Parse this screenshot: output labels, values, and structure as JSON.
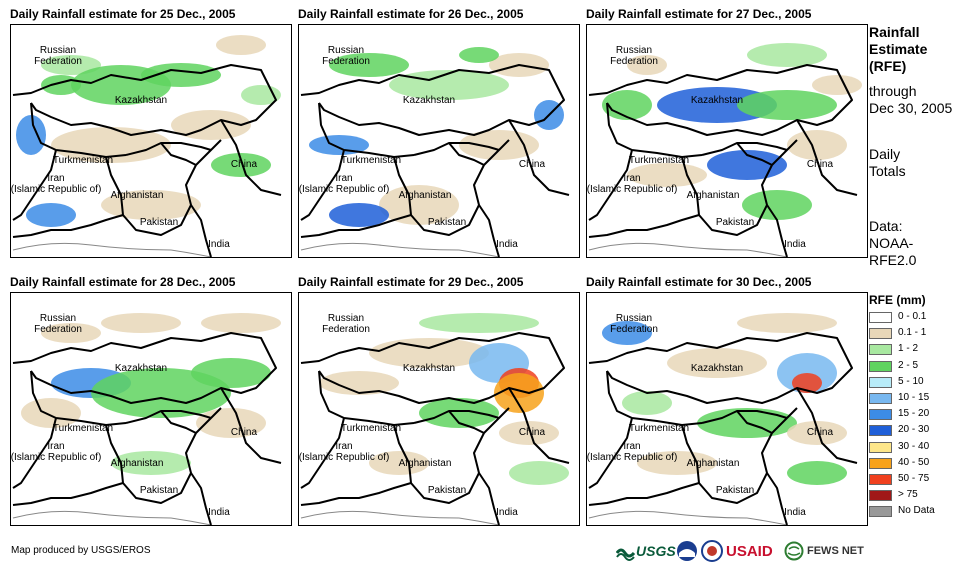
{
  "panels": [
    {
      "title": "Daily Rainfall estimate for 25 Dec., 2005"
    },
    {
      "title": "Daily Rainfall estimate for 26 Dec., 2005"
    },
    {
      "title": "Daily Rainfall estimate for 27 Dec., 2005"
    },
    {
      "title": "Daily Rainfall estimate for 28 Dec., 2005"
    },
    {
      "title": "Daily Rainfall estimate for 29 Dec., 2005"
    },
    {
      "title": "Daily Rainfall estimate for 30 Dec., 2005"
    }
  ],
  "map_labels": {
    "russia": "Russian\nFederation",
    "kazakhstan": "Kazakhstan",
    "turkmenistan": "Turkmenistan",
    "iran": "Iran\n(Islamic Republic of)",
    "afghanistan": "Afghanistan",
    "pakistan": "Pakistan",
    "china": "China",
    "india": "India"
  },
  "sidebar": {
    "title_line1": "Rainfall",
    "title_line2": "Estimate",
    "title_line3": "(RFE)",
    "through": "through",
    "date": "Dec 30, 2005",
    "daily": "Daily",
    "totals": "Totals",
    "data_label": "Data:",
    "source1": "NOAA-",
    "source2": "RFE2.0"
  },
  "legend": {
    "title": "RFE (mm)",
    "items": [
      {
        "label": "0 - 0.1",
        "color": "#ffffff"
      },
      {
        "label": "0.1 - 1",
        "color": "#e8d7b8"
      },
      {
        "label": "1 - 2",
        "color": "#a8e8a0"
      },
      {
        "label": "2 - 5",
        "color": "#5fd35f"
      },
      {
        "label": "5 - 10",
        "color": "#b8ecf8"
      },
      {
        "label": "10 - 15",
        "color": "#78b8f0"
      },
      {
        "label": "15 - 20",
        "color": "#3c8ce6"
      },
      {
        "label": "20 - 30",
        "color": "#1f5fd8"
      },
      {
        "label": "30 - 40",
        "color": "#fde68a"
      },
      {
        "label": "40 - 50",
        "color": "#f7a21b"
      },
      {
        "label": "50 - 75",
        "color": "#f0401e"
      },
      {
        "label": "> 75",
        "color": "#a01818"
      },
      {
        "label": "No Data",
        "color": "#999999"
      }
    ]
  },
  "credit": "Map produced by USGS/EROS",
  "logos": {
    "usgs": "USGS",
    "usaid": "USAID",
    "fews": "FEWS NET"
  }
}
